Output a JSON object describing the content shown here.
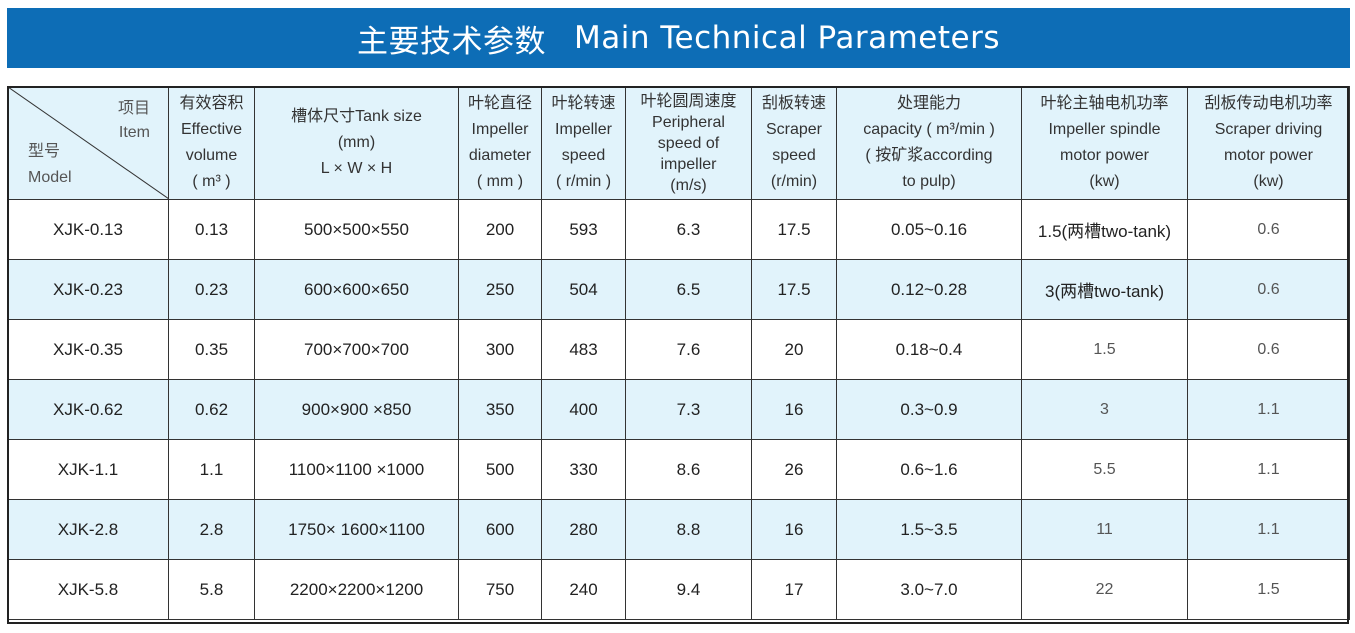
{
  "title": {
    "zh": "主要技术参数",
    "en": "Main Technical Parameters"
  },
  "header": {
    "corner": {
      "item_zh": "项目",
      "item_en": "Item",
      "model_zh": "型号",
      "model_en": "Model"
    },
    "columns": [
      [
        "有效容积",
        "Effective",
        "volume",
        "( m³ )"
      ],
      [
        "槽体尺寸Tank size",
        "(mm)",
        "L × W × H"
      ],
      [
        "叶轮直径",
        "Impeller",
        "diameter",
        "( mm )"
      ],
      [
        "叶轮转速",
        "Impeller",
        "speed",
        "( r/min )"
      ],
      [
        "叶轮圆周速度",
        "Peripheral",
        "speed of",
        "impeller",
        "(m/s)"
      ],
      [
        "刮板转速",
        "Scraper",
        "speed",
        "(r/min)"
      ],
      [
        "处理能力",
        "capacity ( m³/min )",
        "( 按矿浆according",
        "to pulp)"
      ],
      [
        "叶轮主轴电机功率",
        "Impeller spindle",
        "motor power",
        "(kw)"
      ],
      [
        "刮板传动电机功率",
        "Scraper driving",
        "motor power",
        "(kw)"
      ]
    ]
  },
  "rows": [
    [
      "XJK-0.13",
      "0.13",
      "500×500×550",
      "200",
      "593",
      "6.3",
      "17.5",
      "0.05~0.16",
      "1.5(两槽two-tank)",
      "0.6"
    ],
    [
      "XJK-0.23",
      "0.23",
      "600×600×650",
      "250",
      "504",
      "6.5",
      "17.5",
      "0.12~0.28",
      "3(两槽two-tank)",
      "0.6"
    ],
    [
      "XJK-0.35",
      "0.35",
      "700×700×700",
      "300",
      "483",
      "7.6",
      "20",
      "0.18~0.4",
      "1.5",
      "0.6"
    ],
    [
      "XJK-0.62",
      "0.62",
      "900×900 ×850",
      "350",
      "400",
      "7.3",
      "16",
      "0.3~0.9",
      "3",
      "1.1"
    ],
    [
      "XJK-1.1",
      "1.1",
      "1100×1100 ×1000",
      "500",
      "330",
      "8.6",
      "26",
      "0.6~1.6",
      "5.5",
      "1.1"
    ],
    [
      "XJK-2.8",
      "2.8",
      "1750× 1600×1100",
      "600",
      "280",
      "8.8",
      "16",
      "1.5~3.5",
      "11",
      "1.1"
    ],
    [
      "XJK-5.8",
      "5.8",
      "2200×2200×1200",
      "750",
      "240",
      "9.4",
      "17",
      "3.0~7.0",
      "22",
      "1.5"
    ]
  ]
}
